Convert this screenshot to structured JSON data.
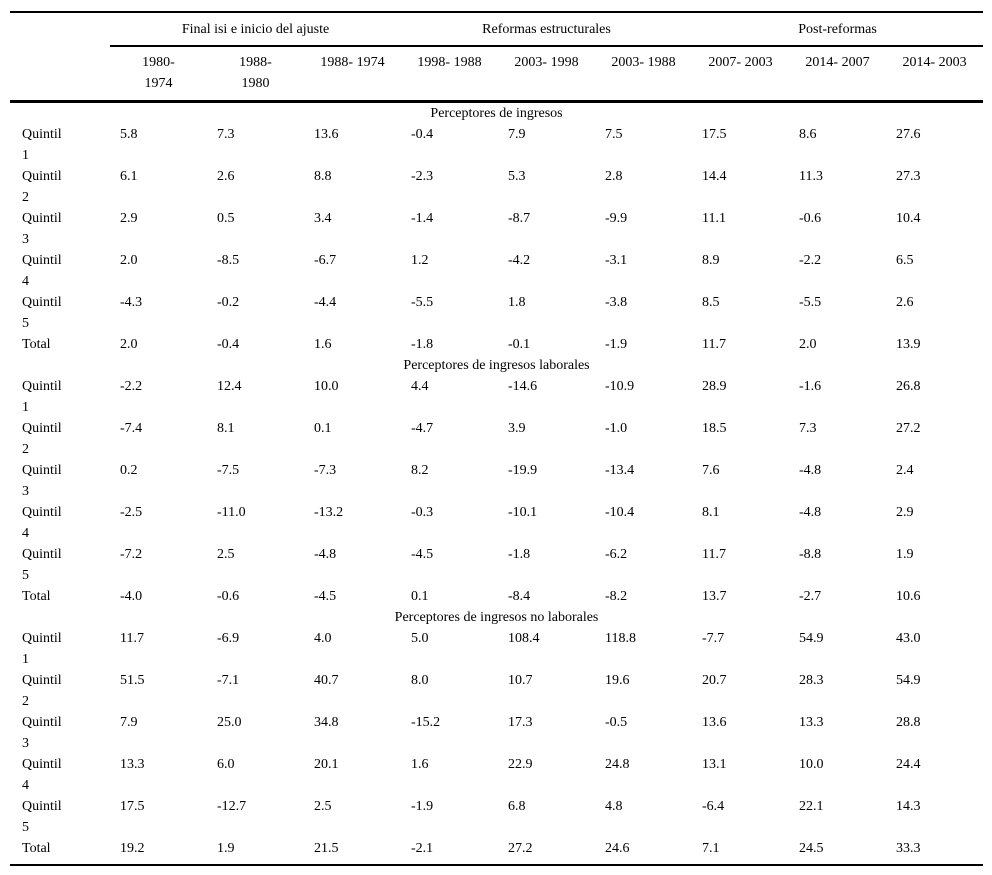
{
  "table": {
    "column_groups": [
      {
        "label": "Final isi e inicio del ajuste",
        "span": 3
      },
      {
        "label": "Reformas estructurales",
        "span": 3
      },
      {
        "label": "Post-reformas",
        "span": 3
      }
    ],
    "columns": [
      "1980-\n1974",
      "1988-\n1980",
      "1988- 1974",
      "1998- 1988",
      "2003- 1998",
      "2003- 1988",
      "2007- 2003",
      "2014- 2007",
      "2014- 2003"
    ],
    "sections": [
      {
        "title": "Perceptores de ingresos",
        "rows": [
          {
            "label": "Quintil\n1",
            "values": [
              "5.8",
              "7.3",
              "13.6",
              "-0.4",
              "7.9",
              "7.5",
              "17.5",
              "8.6",
              "27.6"
            ]
          },
          {
            "label": "Quintil\n2",
            "values": [
              "6.1",
              "2.6",
              "8.8",
              "-2.3",
              "5.3",
              "2.8",
              "14.4",
              "11.3",
              "27.3"
            ]
          },
          {
            "label": "Quintil\n3",
            "values": [
              "2.9",
              "0.5",
              "3.4",
              "-1.4",
              "-8.7",
              "-9.9",
              "11.1",
              "-0.6",
              "10.4"
            ]
          },
          {
            "label": "Quintil\n4",
            "values": [
              "2.0",
              "-8.5",
              "-6.7",
              "1.2",
              "-4.2",
              "-3.1",
              "8.9",
              "-2.2",
              "6.5"
            ]
          },
          {
            "label": "Quintil\n5",
            "values": [
              "-4.3",
              "-0.2",
              "-4.4",
              "-5.5",
              "1.8",
              "-3.8",
              "8.5",
              "-5.5",
              "2.6"
            ]
          },
          {
            "label": "Total",
            "values": [
              "2.0",
              "-0.4",
              "1.6",
              "-1.8",
              "-0.1",
              "-1.9",
              "11.7",
              "2.0",
              "13.9"
            ]
          }
        ]
      },
      {
        "title": "Perceptores de ingresos laborales",
        "rows": [
          {
            "label": "Quintil\n1",
            "values": [
              "-2.2",
              "12.4",
              "10.0",
              "4.4",
              "-14.6",
              "-10.9",
              "28.9",
              "-1.6",
              "26.8"
            ]
          },
          {
            "label": "Quintil\n2",
            "values": [
              "-7.4",
              "8.1",
              "0.1",
              "-4.7",
              "3.9",
              "-1.0",
              "18.5",
              "7.3",
              "27.2"
            ]
          },
          {
            "label": "Quintil\n3",
            "values": [
              "0.2",
              "-7.5",
              "-7.3",
              "8.2",
              "-19.9",
              "-13.4",
              "7.6",
              "-4.8",
              "2.4"
            ]
          },
          {
            "label": "Quintil\n4",
            "values": [
              "-2.5",
              "-11.0",
              "-13.2",
              "-0.3",
              "-10.1",
              "-10.4",
              "8.1",
              "-4.8",
              "2.9"
            ]
          },
          {
            "label": "Quintil\n5",
            "values": [
              "-7.2",
              "2.5",
              "-4.8",
              "-4.5",
              "-1.8",
              "-6.2",
              "11.7",
              "-8.8",
              "1.9"
            ]
          },
          {
            "label": "Total",
            "values": [
              "-4.0",
              "-0.6",
              "-4.5",
              "0.1",
              "-8.4",
              "-8.2",
              "13.7",
              "-2.7",
              "10.6"
            ]
          }
        ]
      },
      {
        "title": "Perceptores de ingresos no laborales",
        "rows": [
          {
            "label": "Quintil\n1",
            "values": [
              "11.7",
              "-6.9",
              "4.0",
              "5.0",
              "108.4",
              "118.8",
              "-7.7",
              "54.9",
              "43.0"
            ]
          },
          {
            "label": "Quintil\n2",
            "values": [
              "51.5",
              "-7.1",
              "40.7",
              "8.0",
              "10.7",
              "19.6",
              "20.7",
              "28.3",
              "54.9"
            ]
          },
          {
            "label": "Quintil\n3",
            "values": [
              "7.9",
              "25.0",
              "34.8",
              "-15.2",
              "17.3",
              "-0.5",
              "13.6",
              "13.3",
              "28.8"
            ]
          },
          {
            "label": "Quintil\n4",
            "values": [
              "13.3",
              "6.0",
              "20.1",
              "1.6",
              "22.9",
              "24.8",
              "13.1",
              "10.0",
              "24.4"
            ]
          },
          {
            "label": "Quintil\n5",
            "values": [
              "17.5",
              "-12.7",
              "2.5",
              "-1.9",
              "6.8",
              "4.8",
              "-6.4",
              "22.1",
              "14.3"
            ]
          },
          {
            "label": "Total",
            "values": [
              "19.2",
              "1.9",
              "21.5",
              "-2.1",
              "27.2",
              "24.6",
              "7.1",
              "24.5",
              "33.3"
            ]
          }
        ]
      }
    ],
    "colors": {
      "text": "#000000",
      "rule": "#000000",
      "background": "#ffffff"
    }
  }
}
